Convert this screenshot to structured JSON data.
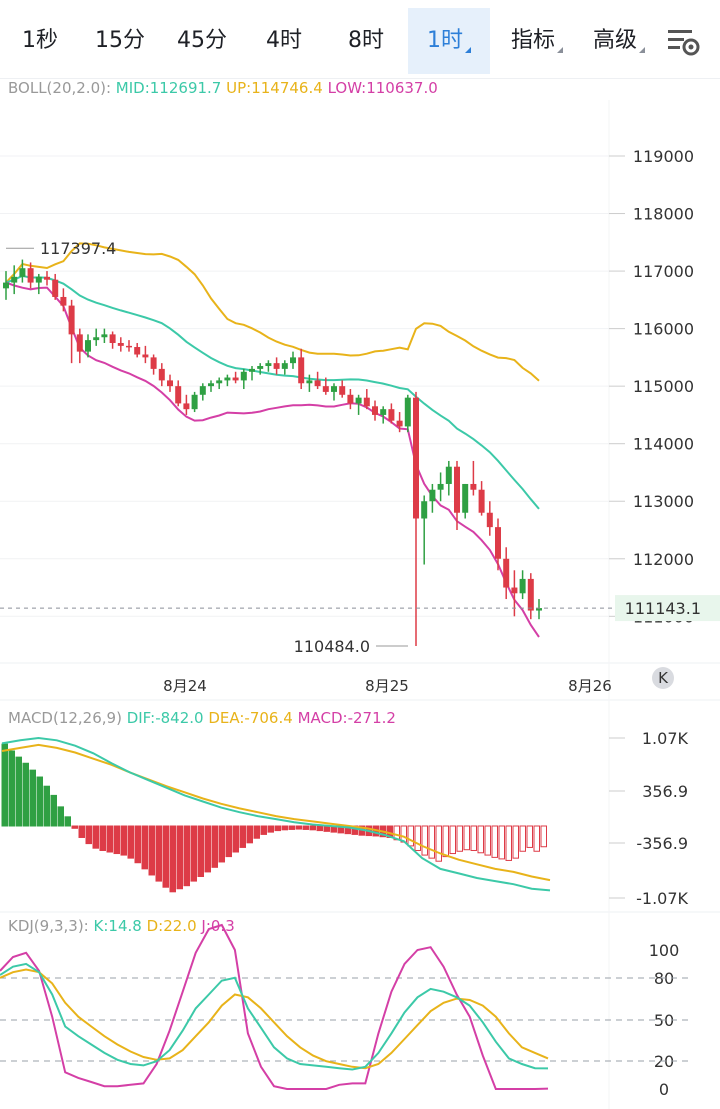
{
  "tabs": [
    {
      "label": "1秒"
    },
    {
      "label": "15分"
    },
    {
      "label": "45分"
    },
    {
      "label": "4时"
    },
    {
      "label": "8时"
    },
    {
      "label": "1时",
      "active": true
    },
    {
      "label": "指标"
    },
    {
      "label": "高级"
    }
  ],
  "settings_icon": "chart-settings-icon",
  "colors": {
    "mid": "#3cc9a8",
    "up": "#e8b31a",
    "low": "#d43fa6",
    "rise": "#2fa043",
    "fall": "#dd3b47"
  },
  "boll": {
    "name": "BOLL(20,2.0):",
    "mid": "MID:112691.7",
    "up": "UP:114746.4",
    "low": "LOW:110637.0"
  },
  "macd": {
    "name": "MACD(12,26,9)",
    "dif": "DIF:-842.0",
    "dea": "DEA:-706.4",
    "macd": "MACD:-271.2"
  },
  "kdj": {
    "name": "KDJ(9,3,3):",
    "k": "K:14.8",
    "d": "D:22.0",
    "j": "J:0.3"
  },
  "chart_data": {
    "type": "candlestick",
    "main_ylim": [
      110400,
      119600
    ],
    "main_yticks": [
      "119000",
      "118000",
      "117000",
      "116000",
      "115000",
      "114000",
      "113000",
      "112000",
      "111000"
    ],
    "high_marker": "117397.4",
    "low_marker": "110484.0",
    "last_price": "111143.1",
    "dates": [
      "8月24",
      "8月25",
      "8月26"
    ],
    "macd_yticks": [
      "1.07K",
      "356.9",
      "-356.9",
      "-1.07K"
    ],
    "kdj_yticks": [
      "100",
      "80",
      "50",
      "20",
      "0"
    ],
    "candles": [
      [
        116700,
        117000,
        116500,
        116800
      ],
      [
        116800,
        117100,
        116600,
        116900
      ],
      [
        116900,
        117200,
        116800,
        117050
      ],
      [
        117050,
        117150,
        116700,
        116800
      ],
      [
        116800,
        116950,
        116600,
        116900
      ],
      [
        116900,
        117000,
        116750,
        116850
      ],
      [
        116850,
        116950,
        116500,
        116550
      ],
      [
        116550,
        116700,
        116300,
        116400
      ],
      [
        116400,
        116500,
        115400,
        115900
      ],
      [
        115900,
        116000,
        115400,
        115600
      ],
      [
        115600,
        115900,
        115500,
        115800
      ],
      [
        115800,
        116000,
        115700,
        115850
      ],
      [
        115850,
        116000,
        115750,
        115900
      ],
      [
        115900,
        115950,
        115650,
        115750
      ],
      [
        115750,
        115850,
        115600,
        115700
      ],
      [
        115700,
        115800,
        115600,
        115680
      ],
      [
        115680,
        115750,
        115500,
        115550
      ],
      [
        115550,
        115700,
        115400,
        115500
      ],
      [
        115500,
        115550,
        115200,
        115300
      ],
      [
        115300,
        115400,
        115000,
        115100
      ],
      [
        115100,
        115200,
        114900,
        115000
      ],
      [
        115000,
        115100,
        114650,
        114700
      ],
      [
        114700,
        114850,
        114500,
        114600
      ],
      [
        114600,
        114900,
        114550,
        114850
      ],
      [
        114850,
        115050,
        114750,
        115000
      ],
      [
        115000,
        115100,
        114900,
        115050
      ],
      [
        115050,
        115150,
        114950,
        115100
      ],
      [
        115100,
        115200,
        115000,
        115150
      ],
      [
        115150,
        115250,
        115050,
        115100
      ],
      [
        115100,
        115300,
        114950,
        115250
      ],
      [
        115250,
        115350,
        115100,
        115300
      ],
      [
        115300,
        115400,
        115200,
        115350
      ],
      [
        115350,
        115450,
        115250,
        115400
      ],
      [
        115400,
        115500,
        115200,
        115300
      ],
      [
        115300,
        115450,
        115200,
        115400
      ],
      [
        115400,
        115600,
        115300,
        115500
      ],
      [
        115500,
        115650,
        114950,
        115050
      ],
      [
        115050,
        115200,
        114900,
        115100
      ],
      [
        115100,
        115250,
        114950,
        115000
      ],
      [
        115000,
        115150,
        114850,
        114900
      ],
      [
        114900,
        115050,
        114750,
        115000
      ],
      [
        115000,
        115100,
        114800,
        114850
      ],
      [
        114850,
        114950,
        114600,
        114700
      ],
      [
        114700,
        114850,
        114500,
        114800
      ],
      [
        114800,
        114950,
        114600,
        114650
      ],
      [
        114650,
        114750,
        114400,
        114500
      ],
      [
        114500,
        114650,
        114350,
        114600
      ],
      [
        114600,
        114700,
        114350,
        114400
      ],
      [
        114400,
        114550,
        114200,
        114300
      ],
      [
        114300,
        114850,
        114200,
        114800
      ],
      [
        114800,
        114900,
        110484,
        112700
      ],
      [
        112700,
        113100,
        111900,
        113000
      ],
      [
        113000,
        113300,
        112800,
        113200
      ],
      [
        113200,
        113500,
        113000,
        113300
      ],
      [
        113300,
        113700,
        113100,
        113600
      ],
      [
        113600,
        113700,
        112500,
        112800
      ],
      [
        112800,
        113300,
        112700,
        113300
      ],
      [
        113300,
        113700,
        113100,
        113200
      ],
      [
        113200,
        113350,
        112750,
        112800
      ],
      [
        112800,
        113000,
        112400,
        112550
      ],
      [
        112550,
        112700,
        111800,
        112000
      ],
      [
        112000,
        112200,
        111300,
        111500
      ],
      [
        111500,
        111800,
        111000,
        111400
      ],
      [
        111400,
        111800,
        111300,
        111650
      ],
      [
        111650,
        111750,
        110950,
        111100
      ],
      [
        111100,
        111300,
        110950,
        111143
      ]
    ],
    "macd_hist": [
      1070,
      980,
      900,
      820,
      730,
      640,
      520,
      400,
      250,
      120,
      -30,
      -150,
      -230,
      -290,
      -320,
      -340,
      -360,
      -380,
      -420,
      -480,
      -560,
      -640,
      -720,
      -800,
      -860,
      -820,
      -780,
      -720,
      -660,
      -600,
      -540,
      -470,
      -400,
      -340,
      -280,
      -220,
      -160,
      -110,
      -80,
      -60,
      -50,
      -45,
      -40,
      -45,
      -50,
      -60,
      -70,
      -80,
      -90,
      -100,
      -110,
      -120,
      -125,
      -130,
      -140,
      -150,
      -180,
      -210,
      -260,
      -320,
      -380,
      -420,
      -460,
      -400,
      -360,
      -330,
      -310,
      -320,
      -350,
      -380,
      -410,
      -430,
      -450,
      -420,
      -330,
      -280,
      -330,
      -271
    ],
    "macd_dif": [
      1080,
      1120,
      1150,
      1120,
      1050,
      950,
      820,
      700,
      600,
      500,
      400,
      320,
      240,
      180,
      130,
      90,
      50,
      20,
      0,
      -20,
      -60,
      -120,
      -200,
      -420,
      -560,
      -620,
      -680,
      -720,
      -760,
      -820,
      -842
    ],
    "macd_dea": [
      980,
      1020,
      1060,
      1020,
      960,
      880,
      800,
      700,
      610,
      520,
      440,
      360,
      290,
      230,
      180,
      130,
      90,
      60,
      30,
      0,
      -30,
      -80,
      -140,
      -260,
      -360,
      -440,
      -500,
      -560,
      -600,
      -660,
      -706.4
    ],
    "kdj_k": [
      82,
      88,
      90,
      84,
      68,
      45,
      38,
      32,
      26,
      21,
      18,
      17,
      20,
      28,
      42,
      58,
      68,
      78,
      80,
      58,
      44,
      30,
      22,
      18,
      17,
      16,
      15,
      14,
      16,
      26,
      40,
      55,
      66,
      72,
      70,
      66,
      60,
      48,
      34,
      22,
      18,
      15,
      14.8
    ],
    "kdj_d": [
      80,
      84,
      86,
      84,
      76,
      62,
      52,
      45,
      38,
      32,
      27,
      23,
      21,
      22,
      28,
      38,
      48,
      60,
      68,
      66,
      58,
      48,
      38,
      30,
      24,
      20,
      18,
      16,
      15,
      18,
      26,
      36,
      46,
      56,
      62,
      65,
      64,
      60,
      52,
      40,
      30,
      26,
      22
    ],
    "kdj_j": [
      85,
      95,
      98,
      85,
      52,
      12,
      8,
      5,
      2,
      2,
      3,
      4,
      18,
      42,
      70,
      98,
      115,
      118,
      100,
      40,
      16,
      2,
      0,
      0,
      0,
      0,
      3,
      4,
      4,
      40,
      70,
      90,
      100,
      102,
      88,
      68,
      52,
      24,
      0,
      0,
      0,
      0,
      0.3
    ]
  }
}
